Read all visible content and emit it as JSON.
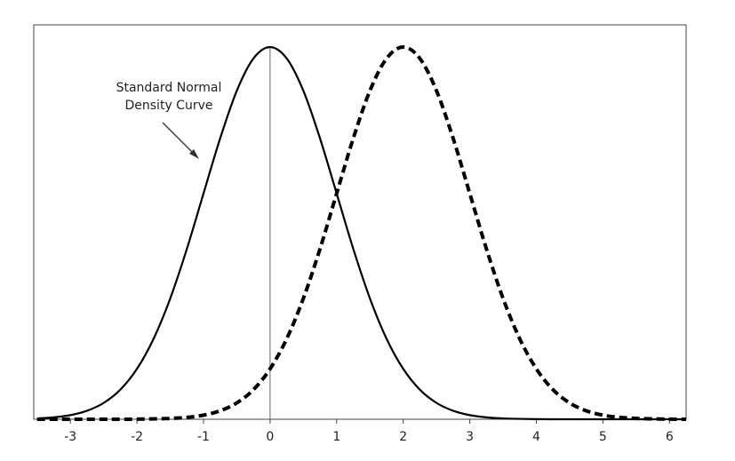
{
  "chart_data": {
    "type": "line",
    "annotation": [
      "Standard Normal",
      "Density Curve"
    ],
    "x": [
      -3.5,
      -3.25,
      -3,
      -2.75,
      -2.5,
      -2.25,
      -2,
      -1.75,
      -1.5,
      -1.25,
      -1,
      -0.75,
      -0.5,
      -0.25,
      0,
      0.25,
      0.5,
      0.75,
      1,
      1.25,
      1.5,
      1.75,
      2,
      2.25,
      2.5,
      2.75,
      3,
      3.25,
      3.5,
      3.75,
      4,
      4.25,
      4.5,
      4.75,
      5,
      5.25,
      5.5,
      5.75,
      6,
      6.25
    ],
    "series": [
      {
        "color": "#000000",
        "dash": "solid",
        "values": [
          0.0009,
          0.002,
          0.0044,
          0.0091,
          0.0175,
          0.0317,
          0.054,
          0.0863,
          0.1295,
          0.1826,
          0.242,
          0.3011,
          0.3521,
          0.3867,
          0.3989,
          0.3867,
          0.3521,
          0.3011,
          0.242,
          0.1826,
          0.1295,
          0.0863,
          0.054,
          0.0317,
          0.0175,
          0.0091,
          0.0044,
          0.002,
          0.0009,
          0.0004,
          0.0001,
          0,
          0,
          0,
          0,
          0,
          0,
          0,
          0,
          0
        ]
      },
      {
        "color": "#000000",
        "dash": "dashed",
        "values": [
          0,
          0,
          0,
          0,
          0,
          0,
          0.0001,
          0.0004,
          0.0009,
          0.002,
          0.0044,
          0.0091,
          0.0175,
          0.0317,
          0.054,
          0.0863,
          0.1295,
          0.1826,
          0.242,
          0.3011,
          0.3521,
          0.3867,
          0.3989,
          0.3867,
          0.3521,
          0.3011,
          0.242,
          0.1826,
          0.1295,
          0.0863,
          0.054,
          0.0317,
          0.0175,
          0.0091,
          0.0044,
          0.002,
          0.0009,
          0.0004,
          0.0001,
          0
        ]
      }
    ],
    "vline": 0,
    "xlim": [
      -3.55,
      6.25
    ],
    "xticks": [
      -3,
      -2,
      -1,
      0,
      1,
      2,
      3,
      4,
      5,
      6
    ],
    "ylim": [
      0,
      0.4227
    ],
    "grid": false
  }
}
